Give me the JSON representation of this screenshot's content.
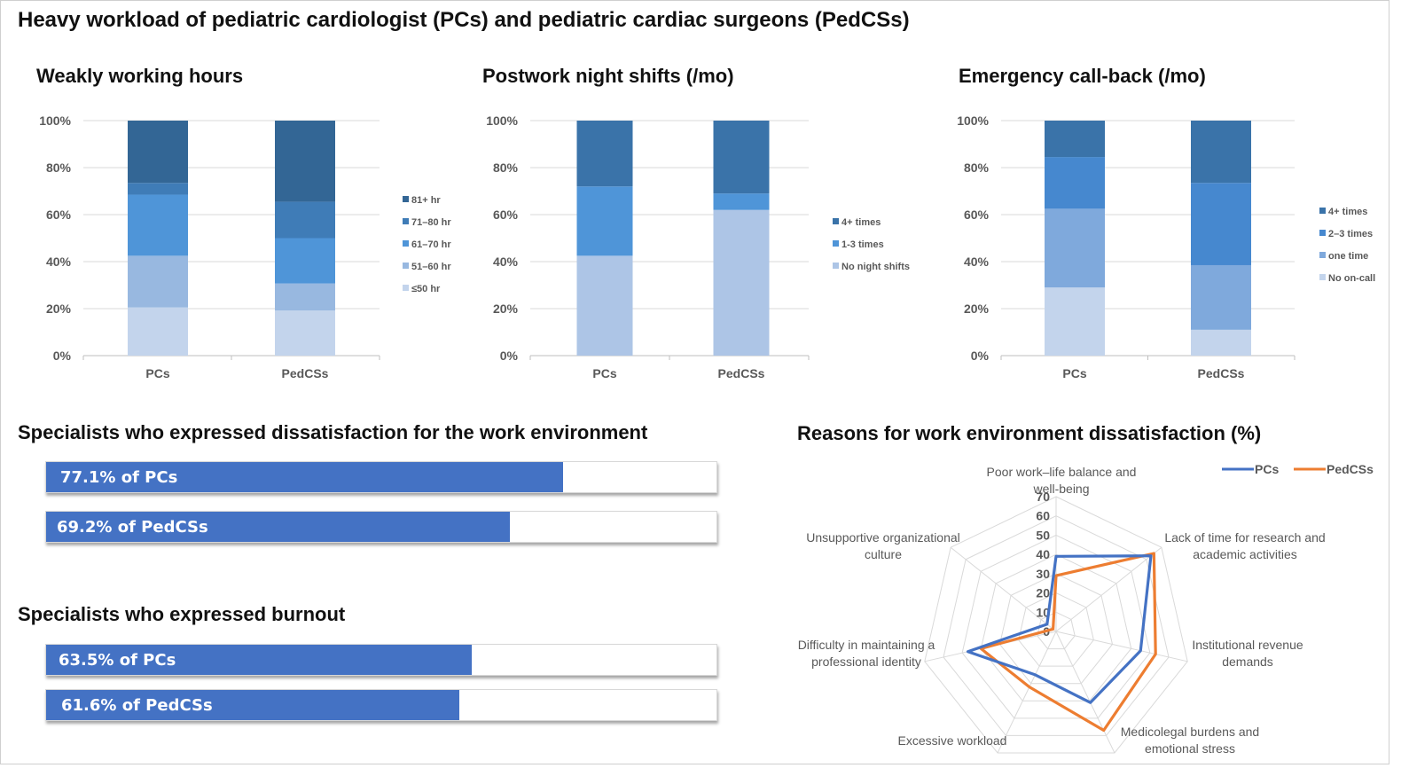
{
  "main_title": "Heavy workload of pediatric cardiologist (PCs) and pediatric cardiac surgeons (PedCSs)",
  "section_titles": {
    "dissatisfaction": "Specialists who expressed dissatisfaction for the work environment",
    "burnout": "Specialists who expressed burnout",
    "radar": "Reasons for work environment dissatisfaction (%)"
  },
  "progress_bars": {
    "dissatisfaction": [
      {
        "label": "77.1% of PCs",
        "value": 77.1
      },
      {
        "label": "69.2% of PedCSs",
        "value": 69.2
      }
    ],
    "burnout": [
      {
        "label": "63.5% of PCs",
        "value": 63.5
      },
      {
        "label": "61.6% of PedCSs",
        "value": 61.6
      }
    ]
  },
  "colors": {
    "bar_fill": "#4472c4",
    "pcs_line": "#4472c4",
    "pedcss_line": "#ed7d31"
  },
  "chart_data": [
    {
      "type": "bar",
      "stacked": true,
      "title": "Weakly working hours",
      "categories": [
        "PCs",
        "PedCSs"
      ],
      "yticks": [
        "0%",
        "20%",
        "40%",
        "60%",
        "80%",
        "100%"
      ],
      "ylim": [
        0,
        100
      ],
      "series": [
        {
          "name": "≤50 hr",
          "values": [
            20.5,
            19.2
          ],
          "color": "#c3d4ec"
        },
        {
          "name": "51–60 hr",
          "values": [
            22,
            11.5
          ],
          "color": "#98b8e0"
        },
        {
          "name": "61–70 hr",
          "values": [
            26,
            19.3
          ],
          "color": "#4f95d8"
        },
        {
          "name": "71–80 hr",
          "values": [
            5,
            15.5
          ],
          "color": "#3f7cb7"
        },
        {
          "name": "81+ hr",
          "values": [
            26.5,
            34.5
          ],
          "color": "#336695"
        }
      ],
      "legend": "right"
    },
    {
      "type": "bar",
      "stacked": true,
      "title": "Postwork night shifts (/mo)",
      "categories": [
        "PCs",
        "PedCSs"
      ],
      "yticks": [
        "0%",
        "20%",
        "40%",
        "60%",
        "80%",
        "100%"
      ],
      "ylim": [
        0,
        100
      ],
      "series": [
        {
          "name": "No night shifts",
          "values": [
            42.5,
            62
          ],
          "color": "#adc5e6"
        },
        {
          "name": "1-3 times",
          "values": [
            29.5,
            7
          ],
          "color": "#4f95d8"
        },
        {
          "name": "4+ times",
          "values": [
            28,
            31
          ],
          "color": "#3a73a9"
        }
      ],
      "legend": "right"
    },
    {
      "type": "bar",
      "stacked": true,
      "title": "Emergency call-back (/mo)",
      "categories": [
        "PCs",
        "PedCSs"
      ],
      "yticks": [
        "0%",
        "20%",
        "40%",
        "60%",
        "80%",
        "100%"
      ],
      "ylim": [
        0,
        100
      ],
      "series": [
        {
          "name": "No on-call",
          "values": [
            29,
            11
          ],
          "color": "#c3d4ec"
        },
        {
          "name": "one time",
          "values": [
            33.5,
            27.5
          ],
          "color": "#7fa9dc"
        },
        {
          "name": "2–3 times",
          "values": [
            22,
            35
          ],
          "color": "#4688cf"
        },
        {
          "name": "4+ times",
          "values": [
            15.5,
            26.5
          ],
          "color": "#3a73a9"
        }
      ],
      "legend": "right"
    },
    {
      "type": "radar",
      "title": "Reasons for work environment dissatisfaction (%)",
      "axes": [
        "Poor work–life balance and well-being",
        "Lack of time for research and academic activities",
        "Institutional revenue demands",
        "Medicolegal burdens and emotional stress",
        "Excessive workload",
        "Difficulty in maintaining a professional identity",
        "Unsupportive organizational culture"
      ],
      "axis_label_lines": [
        [
          "Poor work–life balance and",
          "well-being"
        ],
        [
          "Lack of time for research and",
          "academic activities"
        ],
        [
          "Institutional revenue",
          "demands"
        ],
        [
          "Medicolegal burdens and",
          "emotional stress"
        ],
        [
          "Excessive workload"
        ],
        [
          "Difficulty in maintaining a",
          "professional identity"
        ],
        [
          "Unsupportive organizational",
          "culture"
        ]
      ],
      "ticks": [
        "0",
        "10",
        "20",
        "30",
        "40",
        "50",
        "60",
        "70"
      ],
      "range": [
        0,
        70
      ],
      "series": [
        {
          "name": "PCs",
          "values": [
            39,
            63,
            45,
            41,
            25,
            47,
            6
          ],
          "color": "#4472c4"
        },
        {
          "name": "PedCSs",
          "values": [
            29,
            65,
            53,
            57,
            32,
            40,
            2
          ],
          "color": "#ed7d31"
        }
      ],
      "legend": "top-right"
    }
  ]
}
